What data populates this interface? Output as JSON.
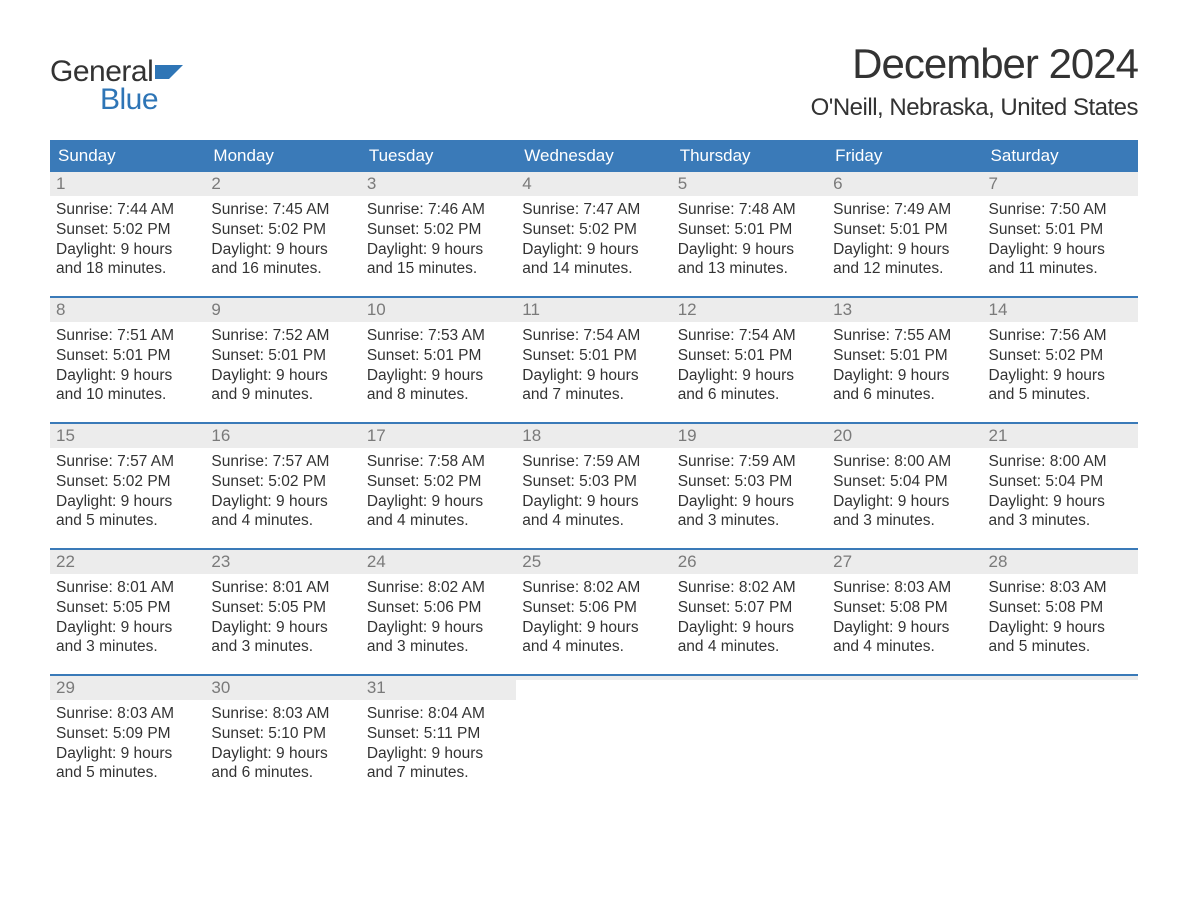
{
  "brand": {
    "word1": "General",
    "word2": "Blue",
    "flag_color": "#2e75b6",
    "text_color": "#333333",
    "blue_color": "#2e75b6"
  },
  "title": "December 2024",
  "location": "O'Neill, Nebraska, United States",
  "colors": {
    "header_bg": "#3a7ab8",
    "header_text": "#ffffff",
    "week_border": "#3a7ab8",
    "daynum_bg": "#ececec",
    "daynum_text": "#7a7a7a",
    "body_text": "#333333",
    "page_bg": "#ffffff"
  },
  "typography": {
    "title_fontsize": 42,
    "location_fontsize": 24,
    "weekday_fontsize": 17,
    "daynum_fontsize": 17,
    "body_fontsize": 15.5
  },
  "layout": {
    "columns": 7,
    "rows": 5,
    "cell_min_height": 124
  },
  "weekdays": [
    "Sunday",
    "Monday",
    "Tuesday",
    "Wednesday",
    "Thursday",
    "Friday",
    "Saturday"
  ],
  "labels": {
    "sunrise": "Sunrise",
    "sunset": "Sunset",
    "daylight": "Daylight"
  },
  "weeks": [
    [
      {
        "n": "1",
        "sunrise": "7:44 AM",
        "sunset": "5:02 PM",
        "dl1": "9 hours",
        "dl2": "and 18 minutes."
      },
      {
        "n": "2",
        "sunrise": "7:45 AM",
        "sunset": "5:02 PM",
        "dl1": "9 hours",
        "dl2": "and 16 minutes."
      },
      {
        "n": "3",
        "sunrise": "7:46 AM",
        "sunset": "5:02 PM",
        "dl1": "9 hours",
        "dl2": "and 15 minutes."
      },
      {
        "n": "4",
        "sunrise": "7:47 AM",
        "sunset": "5:02 PM",
        "dl1": "9 hours",
        "dl2": "and 14 minutes."
      },
      {
        "n": "5",
        "sunrise": "7:48 AM",
        "sunset": "5:01 PM",
        "dl1": "9 hours",
        "dl2": "and 13 minutes."
      },
      {
        "n": "6",
        "sunrise": "7:49 AM",
        "sunset": "5:01 PM",
        "dl1": "9 hours",
        "dl2": "and 12 minutes."
      },
      {
        "n": "7",
        "sunrise": "7:50 AM",
        "sunset": "5:01 PM",
        "dl1": "9 hours",
        "dl2": "and 11 minutes."
      }
    ],
    [
      {
        "n": "8",
        "sunrise": "7:51 AM",
        "sunset": "5:01 PM",
        "dl1": "9 hours",
        "dl2": "and 10 minutes."
      },
      {
        "n": "9",
        "sunrise": "7:52 AM",
        "sunset": "5:01 PM",
        "dl1": "9 hours",
        "dl2": "and 9 minutes."
      },
      {
        "n": "10",
        "sunrise": "7:53 AM",
        "sunset": "5:01 PM",
        "dl1": "9 hours",
        "dl2": "and 8 minutes."
      },
      {
        "n": "11",
        "sunrise": "7:54 AM",
        "sunset": "5:01 PM",
        "dl1": "9 hours",
        "dl2": "and 7 minutes."
      },
      {
        "n": "12",
        "sunrise": "7:54 AM",
        "sunset": "5:01 PM",
        "dl1": "9 hours",
        "dl2": "and 6 minutes."
      },
      {
        "n": "13",
        "sunrise": "7:55 AM",
        "sunset": "5:01 PM",
        "dl1": "9 hours",
        "dl2": "and 6 minutes."
      },
      {
        "n": "14",
        "sunrise": "7:56 AM",
        "sunset": "5:02 PM",
        "dl1": "9 hours",
        "dl2": "and 5 minutes."
      }
    ],
    [
      {
        "n": "15",
        "sunrise": "7:57 AM",
        "sunset": "5:02 PM",
        "dl1": "9 hours",
        "dl2": "and 5 minutes."
      },
      {
        "n": "16",
        "sunrise": "7:57 AM",
        "sunset": "5:02 PM",
        "dl1": "9 hours",
        "dl2": "and 4 minutes."
      },
      {
        "n": "17",
        "sunrise": "7:58 AM",
        "sunset": "5:02 PM",
        "dl1": "9 hours",
        "dl2": "and 4 minutes."
      },
      {
        "n": "18",
        "sunrise": "7:59 AM",
        "sunset": "5:03 PM",
        "dl1": "9 hours",
        "dl2": "and 4 minutes."
      },
      {
        "n": "19",
        "sunrise": "7:59 AM",
        "sunset": "5:03 PM",
        "dl1": "9 hours",
        "dl2": "and 3 minutes."
      },
      {
        "n": "20",
        "sunrise": "8:00 AM",
        "sunset": "5:04 PM",
        "dl1": "9 hours",
        "dl2": "and 3 minutes."
      },
      {
        "n": "21",
        "sunrise": "8:00 AM",
        "sunset": "5:04 PM",
        "dl1": "9 hours",
        "dl2": "and 3 minutes."
      }
    ],
    [
      {
        "n": "22",
        "sunrise": "8:01 AM",
        "sunset": "5:05 PM",
        "dl1": "9 hours",
        "dl2": "and 3 minutes."
      },
      {
        "n": "23",
        "sunrise": "8:01 AM",
        "sunset": "5:05 PM",
        "dl1": "9 hours",
        "dl2": "and 3 minutes."
      },
      {
        "n": "24",
        "sunrise": "8:02 AM",
        "sunset": "5:06 PM",
        "dl1": "9 hours",
        "dl2": "and 3 minutes."
      },
      {
        "n": "25",
        "sunrise": "8:02 AM",
        "sunset": "5:06 PM",
        "dl1": "9 hours",
        "dl2": "and 4 minutes."
      },
      {
        "n": "26",
        "sunrise": "8:02 AM",
        "sunset": "5:07 PM",
        "dl1": "9 hours",
        "dl2": "and 4 minutes."
      },
      {
        "n": "27",
        "sunrise": "8:03 AM",
        "sunset": "5:08 PM",
        "dl1": "9 hours",
        "dl2": "and 4 minutes."
      },
      {
        "n": "28",
        "sunrise": "8:03 AM",
        "sunset": "5:08 PM",
        "dl1": "9 hours",
        "dl2": "and 5 minutes."
      }
    ],
    [
      {
        "n": "29",
        "sunrise": "8:03 AM",
        "sunset": "5:09 PM",
        "dl1": "9 hours",
        "dl2": "and 5 minutes."
      },
      {
        "n": "30",
        "sunrise": "8:03 AM",
        "sunset": "5:10 PM",
        "dl1": "9 hours",
        "dl2": "and 6 minutes."
      },
      {
        "n": "31",
        "sunrise": "8:04 AM",
        "sunset": "5:11 PM",
        "dl1": "9 hours",
        "dl2": "and 7 minutes."
      },
      {
        "empty": true
      },
      {
        "empty": true
      },
      {
        "empty": true
      },
      {
        "empty": true
      }
    ]
  ]
}
